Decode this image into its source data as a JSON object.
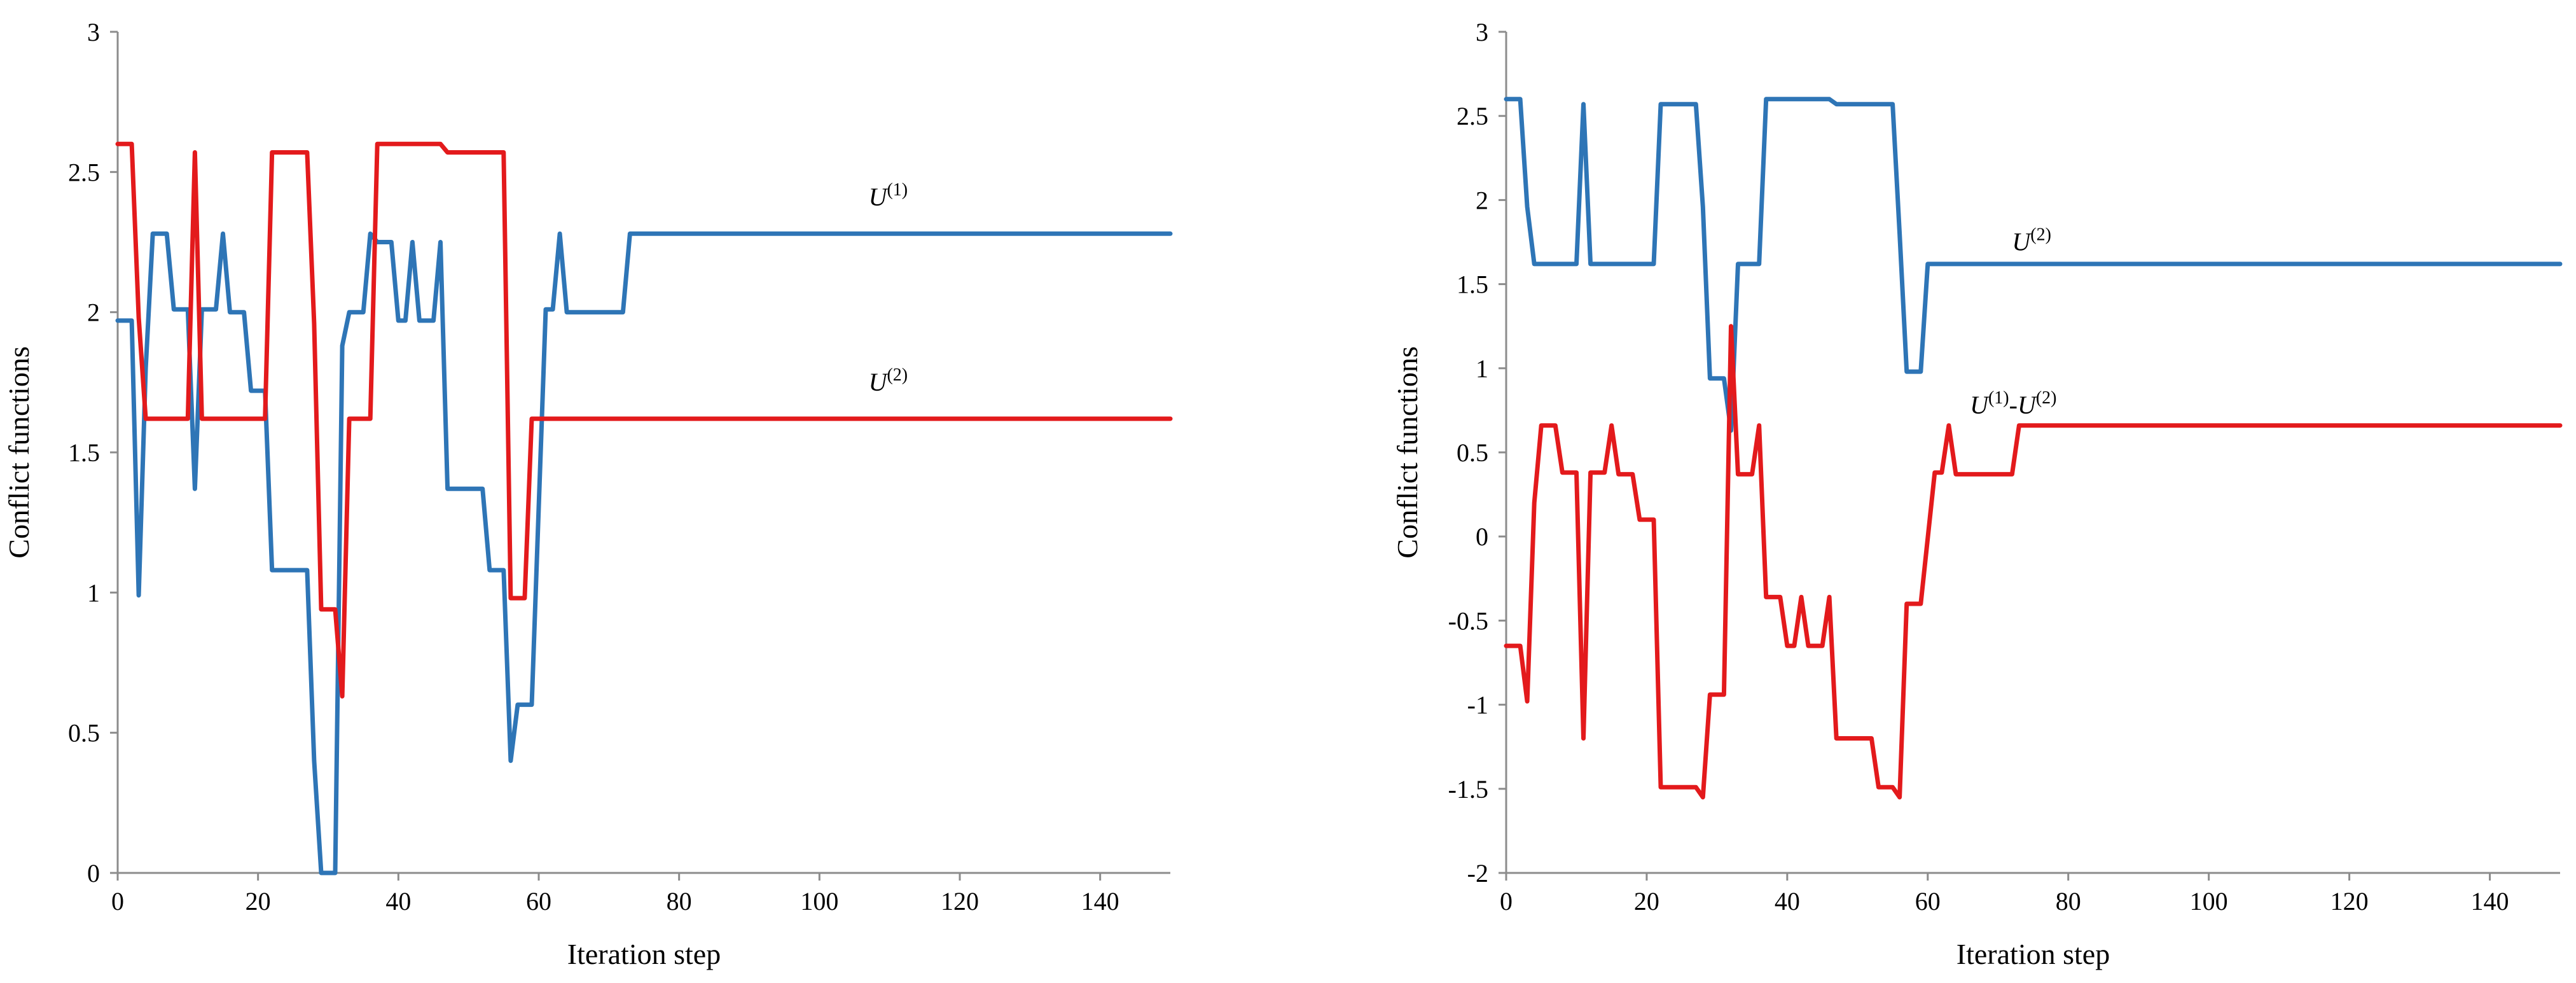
{
  "chart_data": [
    {
      "type": "line",
      "title": "",
      "xlabel": "Iteration step",
      "ylabel": "Conflict functions",
      "xlim": [
        0,
        150
      ],
      "ylim": [
        0,
        3
      ],
      "xticks": [
        0,
        20,
        40,
        60,
        80,
        100,
        120,
        140
      ],
      "yticks": [
        0,
        0.5,
        1,
        1.5,
        2,
        2.5,
        3
      ],
      "xtick_labels": [
        "0",
        "20",
        "40",
        "60",
        "80",
        "100",
        "120",
        "140"
      ],
      "ytick_labels": [
        "0",
        "0.5",
        "1",
        "1.5",
        "2",
        "2.5",
        "3"
      ],
      "grid": false,
      "series": [
        {
          "name": "U(1)",
          "label_base": "U",
          "label_sup": "(1)",
          "label_at": [
            107,
            2.38
          ],
          "color": "#2e75b6",
          "x": [
            0,
            2,
            3,
            4,
            5,
            7,
            8,
            10,
            11,
            12,
            14,
            15,
            16,
            18,
            19,
            21,
            22,
            24,
            27,
            28,
            29,
            30,
            31,
            32,
            33,
            35,
            36,
            37,
            39,
            40,
            41,
            42,
            43,
            45,
            46,
            47,
            49,
            52,
            53,
            55,
            56,
            57,
            59,
            61,
            62,
            63,
            64,
            66,
            72,
            73,
            150
          ],
          "y": [
            1.97,
            1.97,
            0.99,
            1.8,
            2.28,
            2.28,
            2.01,
            2.01,
            1.37,
            2.01,
            2.01,
            2.28,
            2.0,
            2.0,
            1.72,
            1.72,
            1.08,
            1.08,
            1.08,
            0.4,
            0.0,
            0.0,
            0.0,
            1.88,
            2.0,
            2.0,
            2.28,
            2.25,
            2.25,
            1.97,
            1.97,
            2.25,
            1.97,
            1.97,
            2.25,
            1.37,
            1.37,
            1.37,
            1.08,
            1.08,
            0.4,
            0.6,
            0.6,
            2.01,
            2.01,
            2.28,
            2.0,
            2.0,
            2.0,
            2.28,
            2.28
          ]
        },
        {
          "name": "U(2)",
          "label_base": "U",
          "label_sup": "(2)",
          "label_at": [
            107,
            1.72
          ],
          "color": "#e31a1c",
          "x": [
            0,
            2,
            3,
            4,
            10,
            11,
            12,
            20,
            21,
            22,
            27,
            28,
            29,
            31,
            32,
            33,
            36,
            37,
            46,
            47,
            55,
            56,
            58,
            59,
            150
          ],
          "y": [
            2.6,
            2.6,
            1.98,
            1.62,
            1.62,
            2.57,
            1.62,
            1.62,
            1.62,
            2.57,
            2.57,
            1.96,
            0.94,
            0.94,
            0.63,
            1.62,
            1.62,
            2.6,
            2.6,
            2.57,
            2.57,
            0.98,
            0.98,
            1.62,
            1.62
          ]
        }
      ]
    },
    {
      "type": "line",
      "title": "",
      "xlabel": "Iteration step",
      "ylabel": "Conflict functions",
      "xlim": [
        0,
        150
      ],
      "ylim": [
        -2,
        3
      ],
      "xticks": [
        0,
        20,
        40,
        60,
        80,
        100,
        120,
        140
      ],
      "yticks": [
        -2,
        -1.5,
        -1,
        -0.5,
        0,
        0.5,
        1,
        1.5,
        2,
        2.5,
        3
      ],
      "xtick_labels": [
        "0",
        "20",
        "40",
        "60",
        "80",
        "100",
        "120",
        "140"
      ],
      "ytick_labels": [
        "-2",
        "-1.5",
        "-1",
        "-0.5",
        "0",
        "0.5",
        "1",
        "1.5",
        "2",
        "2.5",
        "3"
      ],
      "grid": false,
      "series": [
        {
          "name": "U(2)",
          "label_base": "U",
          "label_sup": "(2)",
          "label_at": [
            72,
            1.7
          ],
          "color": "#2e75b6",
          "x": [
            0,
            2,
            3,
            4,
            10,
            11,
            12,
            21,
            22,
            27,
            28,
            29,
            31,
            32,
            33,
            36,
            37,
            46,
            47,
            55,
            56,
            57,
            59,
            60,
            150
          ],
          "y": [
            2.6,
            2.6,
            1.96,
            1.62,
            1.62,
            2.57,
            1.62,
            1.62,
            2.57,
            2.57,
            1.96,
            0.94,
            0.94,
            0.63,
            1.62,
            1.62,
            2.6,
            2.6,
            2.57,
            2.57,
            1.8,
            0.98,
            0.98,
            1.62,
            1.62
          ]
        },
        {
          "name": "U(1)-U(2)",
          "label_base": "U",
          "label_sup": "(1)",
          "label_mid": "-U",
          "label_sup2": "(2)",
          "label_at": [
            66,
            0.73
          ],
          "color": "#e31a1c",
          "x": [
            0,
            2,
            3,
            4,
            5,
            7,
            8,
            10,
            11,
            12,
            14,
            15,
            16,
            18,
            19,
            21,
            22,
            24,
            27,
            28,
            29,
            31,
            32,
            33,
            35,
            36,
            37,
            39,
            40,
            41,
            42,
            43,
            45,
            46,
            47,
            49,
            52,
            53,
            55,
            56,
            57,
            59,
            61,
            62,
            63,
            64,
            66,
            72,
            73,
            150
          ],
          "y": [
            -0.65,
            -0.65,
            -0.98,
            0.2,
            0.66,
            0.66,
            0.38,
            0.38,
            -1.2,
            0.38,
            0.38,
            0.66,
            0.37,
            0.37,
            0.1,
            0.1,
            -1.49,
            -1.49,
            -1.49,
            -1.55,
            -0.94,
            -0.94,
            1.25,
            0.37,
            0.37,
            0.66,
            -0.36,
            -0.36,
            -0.65,
            -0.65,
            -0.36,
            -0.65,
            -0.65,
            -0.36,
            -1.2,
            -1.2,
            -1.2,
            -1.49,
            -1.49,
            -1.55,
            -0.4,
            -0.4,
            0.38,
            0.38,
            0.66,
            0.37,
            0.37,
            0.37,
            0.66,
            0.66
          ]
        }
      ]
    }
  ]
}
